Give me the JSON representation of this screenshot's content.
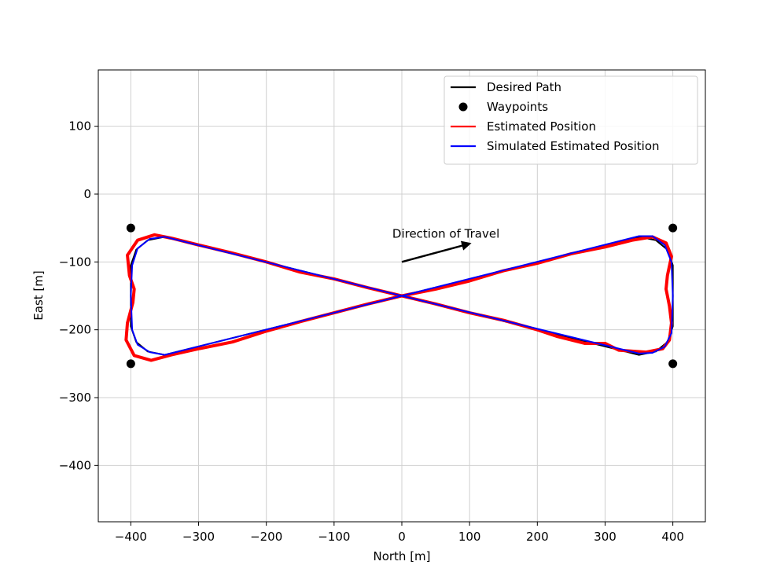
{
  "chart_data": {
    "type": "line",
    "x_label": "North [m]",
    "y_label": "East [m]",
    "xlim": [
      -448,
      448
    ],
    "ylim": [
      -483,
      183
    ],
    "xticks": [
      {
        "value": -400,
        "label": "−400"
      },
      {
        "value": -300,
        "label": "−300"
      },
      {
        "value": -200,
        "label": "−200"
      },
      {
        "value": -100,
        "label": "−100"
      },
      0,
      100,
      200,
      300,
      400
    ],
    "yticks": [
      {
        "value": -400,
        "label": "−400"
      },
      {
        "value": -300,
        "label": "−300"
      },
      {
        "value": -200,
        "label": "−200"
      },
      {
        "value": -100,
        "label": "−100"
      },
      0,
      100
    ],
    "grid": true,
    "legend": "upper right",
    "series": [
      {
        "name": "Desired Path",
        "color": "#000000",
        "style": "line",
        "width": 2,
        "x": [
          0,
          350,
          375,
          392,
          400,
          400,
          392,
          375,
          350,
          0,
          -350,
          -375,
          -392,
          -400,
          -400,
          -392,
          -375,
          -350,
          0
        ],
        "values": [
          -150,
          -63,
          -68,
          -82,
          -105,
          -195,
          -218,
          -232,
          -237,
          -150,
          -63,
          -68,
          -82,
          -105,
          -195,
          -218,
          -232,
          -237,
          -150
        ]
      },
      {
        "name": "Waypoints",
        "color": "#000000",
        "style": "points",
        "x": [
          -400,
          400,
          -400,
          400
        ],
        "values": [
          -50,
          -50,
          -250,
          -250
        ]
      },
      {
        "name": "Estimated Position",
        "color": "#ff0000",
        "style": "line",
        "width": 4,
        "x": [
          0,
          50,
          100,
          150,
          200,
          250,
          300,
          340,
          370,
          390,
          398,
          392,
          390,
          395,
          398,
          395,
          385,
          360,
          320,
          300,
          270,
          230,
          200,
          150,
          100,
          50,
          0,
          -50,
          -100,
          -150,
          -200,
          -250,
          -300,
          -340,
          -365,
          -390,
          -405,
          -402,
          -395,
          -397,
          -405,
          -407,
          -395,
          -370,
          -340,
          -300,
          -250,
          -200,
          -150,
          -100,
          -50,
          0
        ],
        "values": [
          -150,
          -140,
          -128,
          -113,
          -102,
          -88,
          -78,
          -68,
          -63,
          -72,
          -92,
          -120,
          -140,
          -165,
          -190,
          -215,
          -228,
          -233,
          -230,
          -220,
          -220,
          -210,
          -200,
          -186,
          -175,
          -162,
          -150,
          -138,
          -125,
          -115,
          -100,
          -87,
          -75,
          -65,
          -60,
          -68,
          -90,
          -120,
          -140,
          -160,
          -190,
          -215,
          -238,
          -245,
          -237,
          -228,
          -218,
          -202,
          -188,
          -175,
          -162,
          -150
        ]
      },
      {
        "name": "Simulated Estimated Position",
        "color": "#0000ff",
        "style": "line",
        "width": 2,
        "x": [
          0,
          350,
          370,
          388,
          398,
          400,
          398,
          388,
          370,
          350,
          0,
          -350,
          -372,
          -390,
          -398,
          -400,
          -398,
          -390,
          -372,
          -350,
          0
        ],
        "values": [
          -150,
          -62,
          -62,
          -75,
          -100,
          -150,
          -205,
          -225,
          -234,
          -235,
          -150,
          -63,
          -66,
          -80,
          -105,
          -150,
          -200,
          -222,
          -233,
          -237,
          -150
        ]
      }
    ],
    "annotation": {
      "text": "Direction of Travel",
      "arrow_from": [
        0,
        -100
      ],
      "arrow_to": [
        100,
        -73
      ]
    }
  }
}
